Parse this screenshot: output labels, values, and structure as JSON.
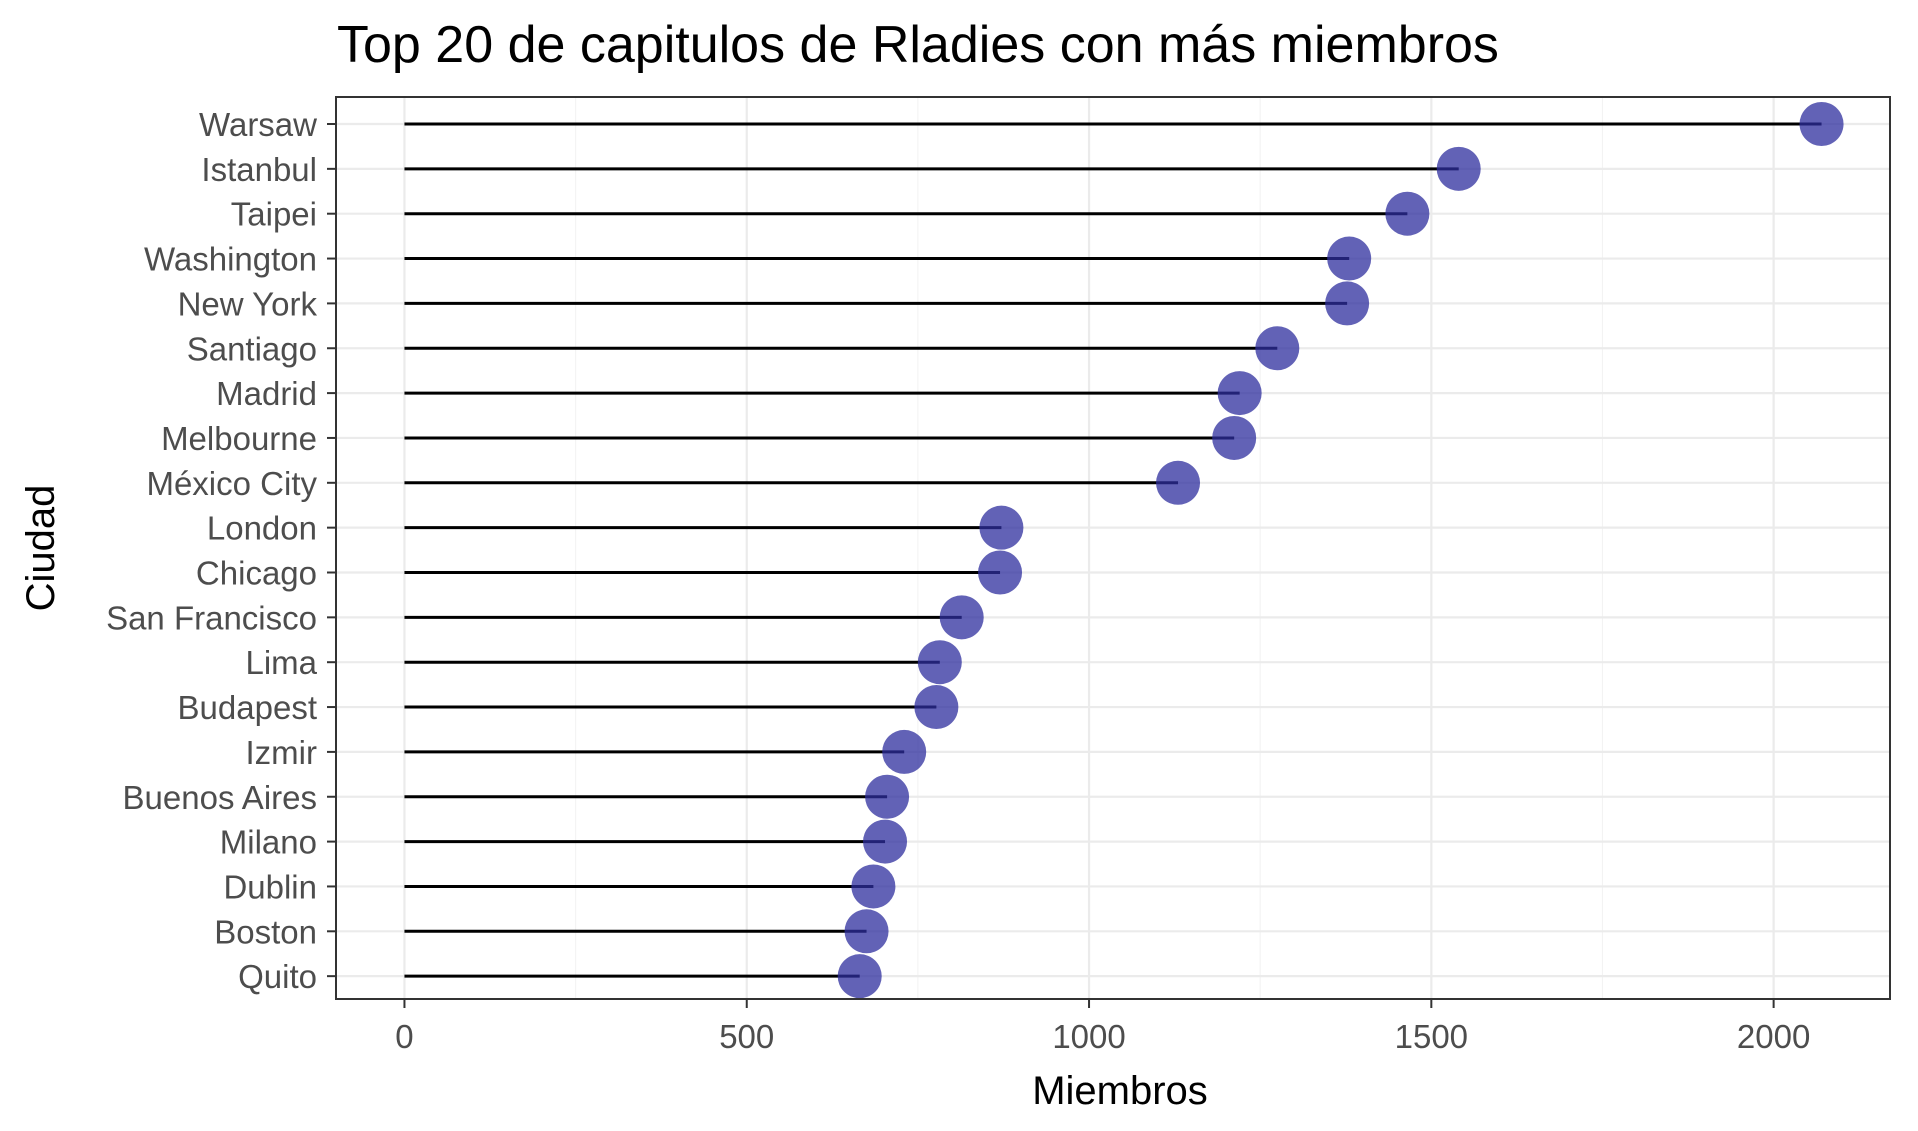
{
  "chart_data": {
    "type": "lollipop",
    "title": "Top 20 de capitulos de Rladies con más miembros",
    "xlabel": "Miembros",
    "ylabel": "Ciudad",
    "xlim": [
      -100,
      2170
    ],
    "xticks": [
      0,
      500,
      1000,
      1500,
      2000
    ],
    "xtick_labels": [
      "0",
      "500",
      "1000",
      "1500",
      "2000"
    ],
    "grid": true,
    "point_color": "#2e2e9e",
    "segment_color": "#000000",
    "categories": [
      "Warsaw",
      "Istanbul",
      "Taipei",
      "Washington",
      "New York",
      "Santiago",
      "Madrid",
      "Melbourne",
      "México City",
      "London",
      "Chicago",
      "San Francisco",
      "Lima",
      "Budapest",
      "Izmir",
      "Buenos Aires",
      "Milano",
      "Dublin",
      "Boston",
      "Quito"
    ],
    "values": [
      2070,
      1540,
      1465,
      1380,
      1377,
      1275,
      1220,
      1212,
      1130,
      872,
      870,
      814,
      782,
      777,
      730,
      705,
      702,
      685,
      675,
      665
    ]
  }
}
